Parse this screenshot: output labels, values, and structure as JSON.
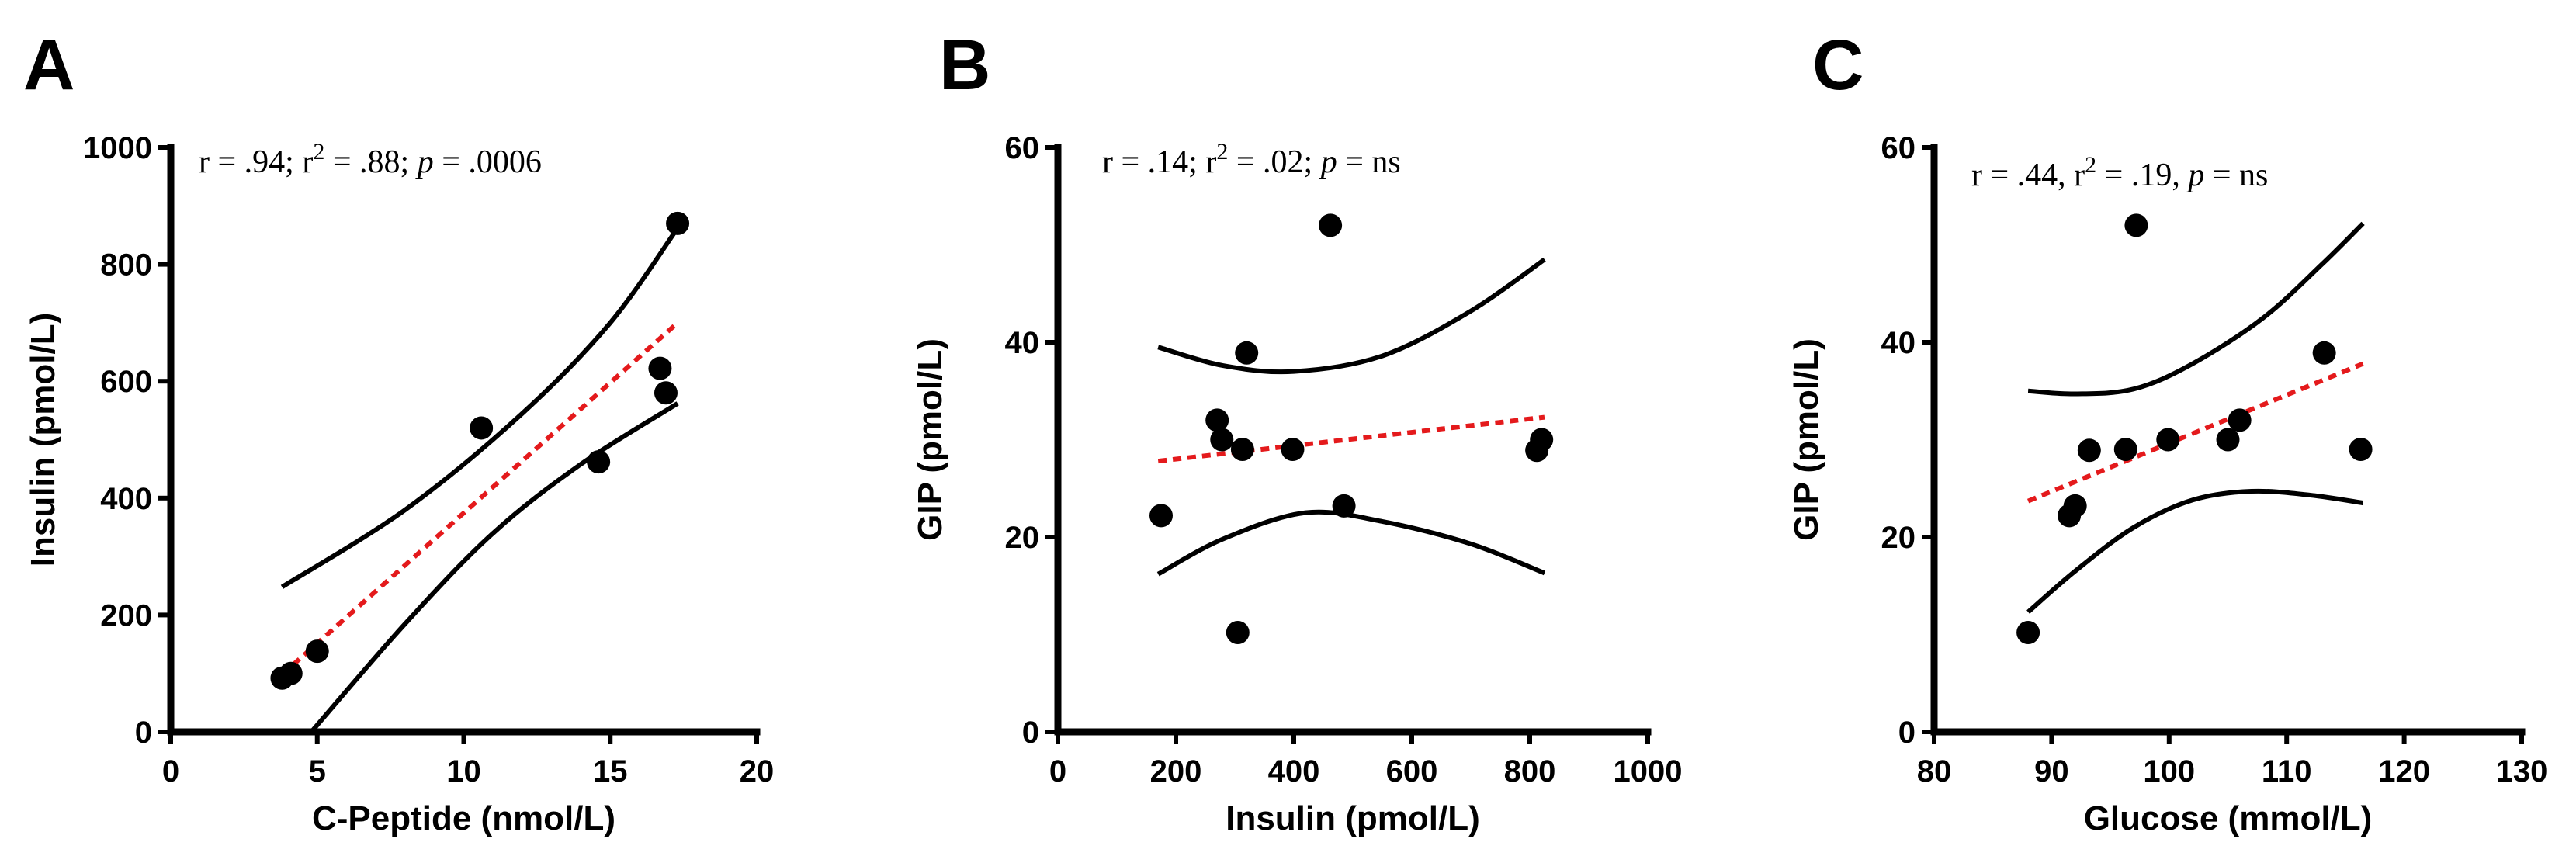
{
  "colors": {
    "fit": "#e41a1c",
    "ink": "#000000",
    "background": "#ffffff"
  },
  "chart_data": [
    {
      "type": "scatter",
      "letter": "A",
      "stats": {
        "r": "r = .94; r",
        "sup": "2",
        "r2": " = .88; ",
        "p_label": "p",
        "p": " = .0006"
      },
      "xlabel": "C-Peptide (nmol/L)",
      "ylabel": "Insulin (pmol/L)",
      "xlim": [
        0,
        20
      ],
      "ylim": [
        0,
        1000
      ],
      "xticks": [
        0,
        5,
        10,
        15,
        20
      ],
      "yticks": [
        0,
        200,
        400,
        600,
        800,
        1000
      ],
      "points": [
        [
          3.8,
          92
        ],
        [
          4.1,
          100
        ],
        [
          5.0,
          138
        ],
        [
          10.6,
          520
        ],
        [
          14.6,
          462
        ],
        [
          16.7,
          622
        ],
        [
          16.9,
          580
        ],
        [
          17.3,
          870
        ]
      ],
      "fit": [
        [
          3.8,
          98
        ],
        [
          17.3,
          700
        ]
      ],
      "ci_upper": [
        [
          3.8,
          248
        ],
        [
          8,
          380
        ],
        [
          12,
          545
        ],
        [
          15,
          700
        ],
        [
          17.3,
          862
        ]
      ],
      "ci_lower": [
        [
          4.8,
          0
        ],
        [
          8,
          185
        ],
        [
          11,
          340
        ],
        [
          14,
          458
        ],
        [
          17.3,
          562
        ]
      ]
    },
    {
      "type": "scatter",
      "letter": "B",
      "stats": {
        "r": "r = .14; r",
        "sup": "2",
        "r2": " =  .02; ",
        "p_label": "p",
        "p": " = ns"
      },
      "xlabel": "Insulin (pmol/L)",
      "ylabel": "GIP (pmol/L)",
      "xlim": [
        0,
        1000
      ],
      "ylim": [
        0,
        60
      ],
      "xticks": [
        0,
        200,
        400,
        600,
        800,
        1000
      ],
      "yticks": [
        0,
        20,
        40,
        60
      ],
      "points": [
        [
          175,
          22.2
        ],
        [
          270,
          32
        ],
        [
          278,
          30
        ],
        [
          305,
          10.2
        ],
        [
          313,
          29
        ],
        [
          320,
          38.9
        ],
        [
          398,
          29
        ],
        [
          462,
          52
        ],
        [
          485,
          23.2
        ],
        [
          812,
          28.9
        ],
        [
          820,
          30
        ]
      ],
      "fit": [
        [
          170,
          27.8
        ],
        [
          825,
          32.3
        ]
      ],
      "ci_upper": [
        [
          170,
          39.5
        ],
        [
          280,
          37.6
        ],
        [
          400,
          37
        ],
        [
          550,
          38.6
        ],
        [
          700,
          43.2
        ],
        [
          825,
          48.5
        ]
      ],
      "ci_lower": [
        [
          170,
          16.2
        ],
        [
          280,
          19.8
        ],
        [
          420,
          22.5
        ],
        [
          550,
          21.6
        ],
        [
          700,
          19.3
        ],
        [
          825,
          16.3
        ]
      ]
    },
    {
      "type": "scatter",
      "letter": "C",
      "stats": {
        "r": "r = .44, r",
        "sup": "2",
        "r2": " = .19, ",
        "p_label": "p",
        "p": " = ns"
      },
      "xlabel": "Glucose (mmol/L)",
      "ylabel": "GIP (pmol/L)",
      "xlim": [
        80,
        130
      ],
      "ylim": [
        0,
        60
      ],
      "xticks": [
        80,
        90,
        100,
        110,
        120,
        130
      ],
      "yticks": [
        0,
        20,
        40,
        60
      ],
      "points": [
        [
          88,
          10.2
        ],
        [
          91.5,
          22.2
        ],
        [
          92,
          23.2
        ],
        [
          93.2,
          28.9
        ],
        [
          96.3,
          29
        ],
        [
          97.2,
          52
        ],
        [
          99.9,
          30
        ],
        [
          105,
          30
        ],
        [
          106,
          32
        ],
        [
          113.2,
          38.9
        ],
        [
          116.3,
          29
        ]
      ],
      "fit": [
        [
          88,
          23.7
        ],
        [
          116.5,
          37.8
        ]
      ],
      "ci_upper": [
        [
          88,
          35
        ],
        [
          92,
          34.7
        ],
        [
          97,
          35.2
        ],
        [
          102,
          37.8
        ],
        [
          108,
          42.5
        ],
        [
          113,
          48
        ],
        [
          116.5,
          52.2
        ]
      ],
      "ci_lower": [
        [
          88,
          12.3
        ],
        [
          92,
          16.5
        ],
        [
          97,
          21
        ],
        [
          102,
          23.8
        ],
        [
          107,
          24.7
        ],
        [
          112,
          24.3
        ],
        [
          116.5,
          23.5
        ]
      ]
    }
  ]
}
